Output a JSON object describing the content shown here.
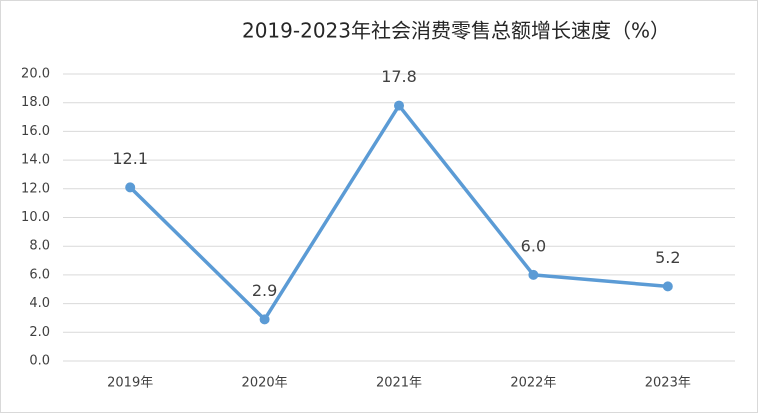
{
  "chart_data": {
    "type": "line",
    "title": "2019-2023年社会消费零售总额增长速度（%）",
    "categories": [
      "2019年",
      "2020年",
      "2021年",
      "2022年",
      "2023年"
    ],
    "series": [
      {
        "name": "增长速度",
        "color": "#5b9bd5",
        "values": [
          12.1,
          2.9,
          17.8,
          6.0,
          5.2
        ],
        "value_labels": [
          "12.1",
          "2.9",
          "17.8",
          "6.0",
          "5.2"
        ]
      }
    ],
    "ylim": [
      0,
      20
    ],
    "yticks": [
      {
        "value": 0,
        "label": "0.0"
      },
      {
        "value": 2,
        "label": "2.0"
      },
      {
        "value": 4,
        "label": "4.0"
      },
      {
        "value": 6,
        "label": "6.0"
      },
      {
        "value": 8,
        "label": "8.0"
      },
      {
        "value": 10,
        "label": "10.0"
      },
      {
        "value": 12,
        "label": "12.0"
      },
      {
        "value": 14,
        "label": "14.0"
      },
      {
        "value": 16,
        "label": "16.0"
      },
      {
        "value": 18,
        "label": "18.0"
      },
      {
        "value": 20,
        "label": "20.0"
      }
    ],
    "grid": true
  }
}
